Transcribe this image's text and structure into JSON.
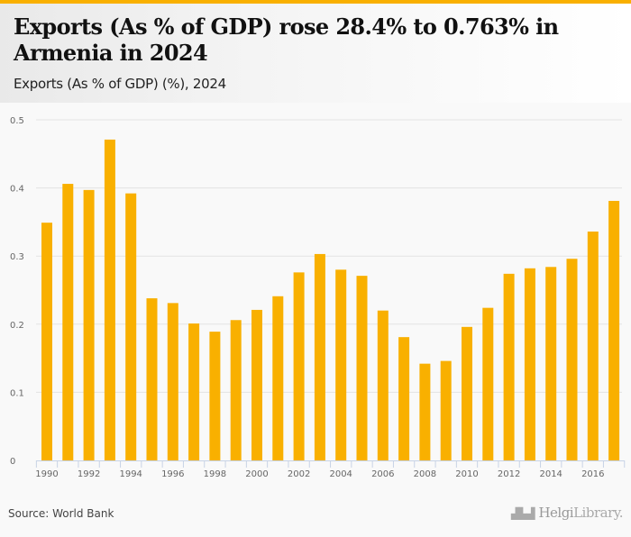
{
  "header": {
    "title": "Exports (As % of GDP) rose 28.4% to 0.763% in Armenia in 2024",
    "subtitle": "Exports (As % of GDP) (%), 2024"
  },
  "footer": {
    "source": "Source: World Bank",
    "logo_main": "Helgi",
    "logo_suffix": "Library."
  },
  "colors": {
    "accent": "#f9b000",
    "bar": "#f9b000",
    "grid": "#e3e3e3",
    "axis": "#c8d3e6"
  },
  "chart_data": {
    "type": "bar",
    "title": "Exports (As % of GDP) rose 28.4% to 0.763% in Armenia in 2024",
    "subtitle": "Exports (As % of GDP) (%), 2024",
    "xlabel": "",
    "ylabel": "",
    "ylim": [
      0,
      0.5
    ],
    "yticks": [
      0,
      0.1,
      0.2,
      0.3,
      0.4,
      0.5
    ],
    "ytick_labels": [
      "0",
      "0.1",
      "0.2",
      "0.3",
      "0.4",
      "0.5"
    ],
    "grid": true,
    "legend": "none",
    "categories": [
      "1990",
      "1991",
      "1992",
      "1993",
      "1994",
      "1995",
      "1996",
      "1997",
      "1998",
      "1999",
      "2000",
      "2001",
      "2002",
      "2003",
      "2004",
      "2005",
      "2006",
      "2007",
      "2008",
      "2009",
      "2010",
      "2011",
      "2012",
      "2013",
      "2014",
      "2015",
      "2016",
      "2017"
    ],
    "xtick_labels": [
      "1990",
      "1992",
      "1994",
      "1996",
      "1998",
      "2000",
      "2002",
      "2004",
      "2006",
      "2008",
      "2010",
      "2012",
      "2014",
      "2016"
    ],
    "values": [
      0.349,
      0.406,
      0.397,
      0.471,
      0.392,
      0.238,
      0.231,
      0.201,
      0.189,
      0.206,
      0.221,
      0.241,
      0.276,
      0.303,
      0.28,
      0.271,
      0.22,
      0.181,
      0.142,
      0.146,
      0.196,
      0.224,
      0.274,
      0.282,
      0.284,
      0.296,
      0.336,
      0.381
    ]
  }
}
